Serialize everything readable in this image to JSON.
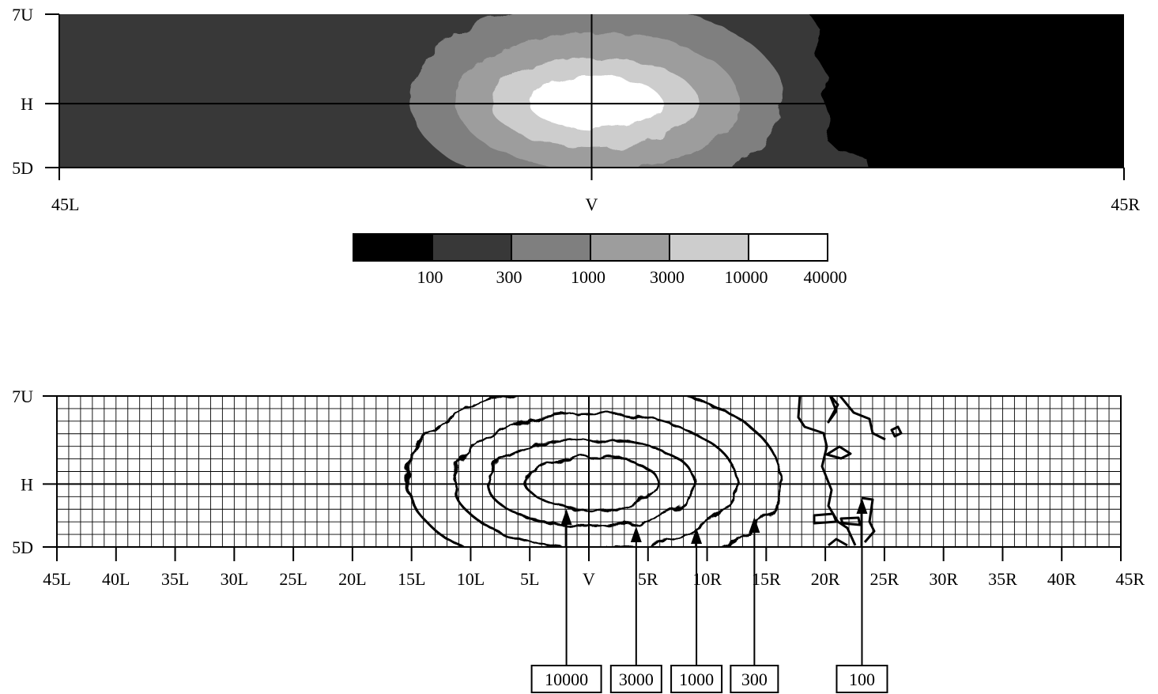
{
  "chart_data": [
    {
      "type": "heatmap",
      "title": "",
      "x_ticks": [
        "45L",
        "V",
        "45R"
      ],
      "y_ticks": [
        "7U",
        "H",
        "5D"
      ],
      "x_range_deg": [
        -45,
        45
      ],
      "y_range_deg": [
        -5,
        7
      ],
      "colors": {
        "below_100": "#000000",
        "100_300": "#383838",
        "300_1000": "#7f7f7f",
        "1000_3000": "#9d9d9d",
        "3000_10000": "#cdcdcd",
        "10000_40000": "#ffffff"
      },
      "legend": {
        "placement": "below",
        "swatches": [
          "#000000",
          "#383838",
          "#7f7f7f",
          "#9d9d9d",
          "#cdcdcd",
          "#ffffff"
        ],
        "labels": [
          "100",
          "300",
          "1000",
          "3000",
          "10000",
          "40000"
        ]
      },
      "regions": [
        {
          "level": 10000,
          "center": [
            0.3,
            0.1
          ],
          "half_width": 5.6,
          "half_height": 2.1
        },
        {
          "level": 3000,
          "center": [
            0.2,
            0.1
          ],
          "half_width": 8.8,
          "half_height": 3.5
        },
        {
          "level": 1000,
          "center": [
            0.5,
            0.2
          ],
          "half_width": 12.0,
          "half_height": 5.4
        },
        {
          "level": 300,
          "center": [
            0.4,
            0.4
          ],
          "half_width": 15.8,
          "half_height": 7.6
        }
      ]
    },
    {
      "type": "line",
      "title": "",
      "x_ticks": [
        "45L",
        "40L",
        "35L",
        "30L",
        "25L",
        "20L",
        "15L",
        "10L",
        "5L",
        "V",
        "5R",
        "10R",
        "15R",
        "20R",
        "25R",
        "30R",
        "35R",
        "40R",
        "45R"
      ],
      "y_ticks": [
        "7U",
        "H",
        "5D"
      ],
      "x_range_deg": [
        -45,
        45
      ],
      "y_range_deg": [
        -5,
        7
      ],
      "grid": true,
      "grid_step_deg": 1,
      "contours": [
        {
          "level": 10000,
          "label": "10000",
          "center": [
            0.3,
            0.1
          ],
          "half_width": 5.6,
          "half_height": 2.1,
          "pointer_x_deg": -1.9
        },
        {
          "level": 3000,
          "label": "3000",
          "center": [
            0.2,
            0.1
          ],
          "half_width": 8.8,
          "half_height": 3.5,
          "pointer_x_deg": 4.0
        },
        {
          "level": 1000,
          "label": "1000",
          "center": [
            0.5,
            0.2
          ],
          "half_width": 12.0,
          "half_height": 5.4,
          "pointer_x_deg": 9.1
        },
        {
          "level": 300,
          "label": "300",
          "center": [
            0.4,
            0.4
          ],
          "half_width": 15.8,
          "half_height": 7.6,
          "pointer_x_deg": 14.0
        },
        {
          "level": 100,
          "label": "100",
          "pointer_x_deg": 23.1
        }
      ]
    }
  ]
}
